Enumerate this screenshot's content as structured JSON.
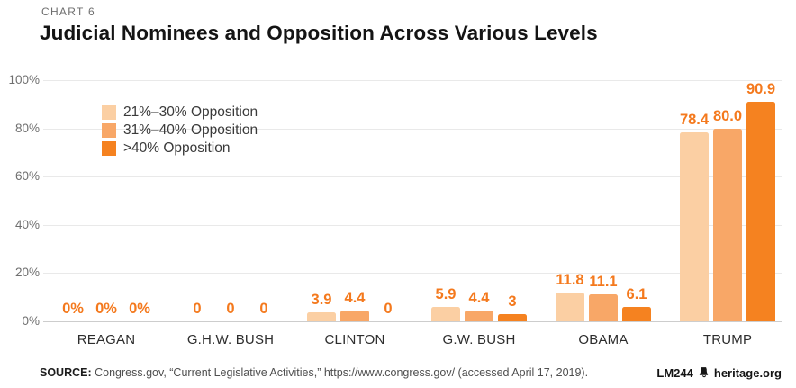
{
  "page": {
    "kicker": "CHART 6",
    "title": "Judicial Nominees and Opposition Across Various Levels"
  },
  "chart_data": {
    "type": "bar",
    "title": "Judicial Nominees and Opposition Across Various Levels",
    "categories": [
      "REAGAN",
      "G.H.W. BUSH",
      "CLINTON",
      "G.W. BUSH",
      "OBAMA",
      "TRUMP"
    ],
    "series": [
      {
        "name": "21%–30% Opposition",
        "color": "#fbcfa3",
        "values": [
          0,
          0,
          3.9,
          5.9,
          11.8,
          78.4
        ],
        "labels": [
          "0%",
          "0",
          "3.9",
          "5.9",
          "11.8",
          "78.4"
        ]
      },
      {
        "name": "31%–40% Opposition",
        "color": "#f8a767",
        "values": [
          0,
          0,
          4.4,
          4.4,
          11.1,
          80.0
        ],
        "labels": [
          "0%",
          "0",
          "4.4",
          "4.4",
          "11.1",
          "80.0"
        ]
      },
      {
        "name": ">40% Opposition",
        "color": "#f58220",
        "values": [
          0,
          0,
          0,
          3,
          6.1,
          90.9
        ],
        "labels": [
          "0%",
          "0",
          "0",
          "3",
          "6.1",
          "90.9"
        ]
      }
    ],
    "ylabel": "",
    "xlabel": "",
    "ylim": [
      0,
      100
    ],
    "yticks": [
      {
        "value": 0,
        "label": "0%"
      },
      {
        "value": 20,
        "label": "20%"
      },
      {
        "value": 40,
        "label": "40%"
      },
      {
        "value": 60,
        "label": "60%"
      },
      {
        "value": 80,
        "label": "80%"
      },
      {
        "value": 100,
        "label": "100%"
      }
    ],
    "grid": "horizontal",
    "legend_position": "upper-left-inside",
    "value_label_color": "#f4791d"
  },
  "footer": {
    "source_label": "SOURCE:",
    "source_text": " Congress.gov, “Current Legislative Activities,” https://www.congress.gov/ (accessed April 17, 2019).",
    "code": "LM244",
    "brand": "heritage.org",
    "brand_icon": "liberty-bell-icon"
  }
}
